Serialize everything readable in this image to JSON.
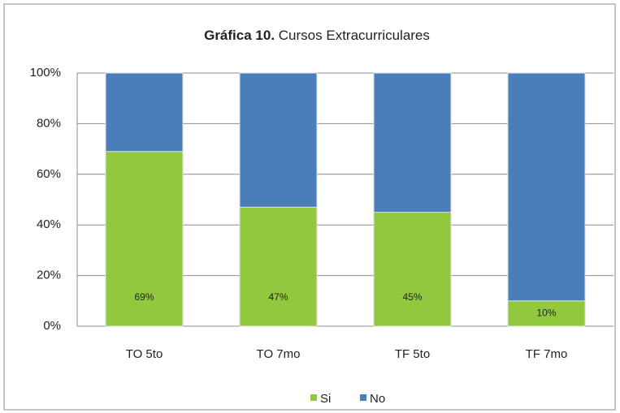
{
  "chart_data": {
    "type": "stacked_bar",
    "title": [
      "Gráfica 10.",
      "Cursos Extracurriculares"
    ],
    "categories": [
      "TO 5to",
      "TO 7mo",
      "TF 5to",
      "TF 7mo"
    ],
    "series": [
      {
        "name": "Si",
        "color": "#92c83e",
        "values": [
          69,
          47,
          45,
          10
        ],
        "value_labels": [
          "69%",
          "47%",
          "45%",
          "10%"
        ]
      },
      {
        "name": "No",
        "color": "#4a7ebb",
        "values": [
          31,
          53,
          55,
          90
        ]
      }
    ],
    "ylim": [
      0,
      100
    ],
    "yticks": [
      {
        "value": 0,
        "label": "0%"
      },
      {
        "value": 20,
        "label": "20%"
      },
      {
        "value": 40,
        "label": "40%"
      },
      {
        "value": 60,
        "label": "60%"
      },
      {
        "value": 80,
        "label": "80%"
      },
      {
        "value": 100,
        "label": "100%"
      }
    ],
    "grid": true,
    "legend": "bottom"
  }
}
